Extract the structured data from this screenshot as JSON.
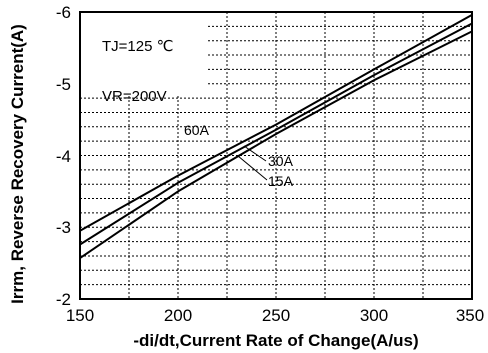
{
  "chart_data": {
    "type": "line",
    "xlabel": "-di/dt,Current Rate of Change(A/us)",
    "ylabel": "Irrm, Reverse Recovery Current(A)",
    "xlim": [
      150,
      350
    ],
    "ylim": [
      -2,
      -6
    ],
    "x_ticks": [
      "150",
      "200",
      "250",
      "300",
      "350"
    ],
    "y_ticks": [
      "-2",
      "-3",
      "-4",
      "-5",
      "-6"
    ],
    "x_tick_values": [
      150,
      200,
      250,
      300,
      350
    ],
    "y_tick_values": [
      -2,
      -3,
      -4,
      -5,
      -6
    ],
    "grid": true,
    "grid_style": "dotted",
    "conditions": [
      "TJ=125 ℃",
      "VR=200V"
    ],
    "series": [
      {
        "name": "60A",
        "x": [
          150,
          200,
          250,
          300,
          350
        ],
        "y": [
          -2.95,
          -3.72,
          -4.43,
          -5.2,
          -5.96
        ]
      },
      {
        "name": "30A",
        "x": [
          150,
          200,
          250,
          300,
          350
        ],
        "y": [
          -2.76,
          -3.62,
          -4.36,
          -5.12,
          -5.84
        ]
      },
      {
        "name": "15A",
        "x": [
          150,
          200,
          250,
          300,
          350
        ],
        "y": [
          -2.57,
          -3.5,
          -4.3,
          -5.05,
          -5.73
        ]
      }
    ],
    "annotations": [
      "60A",
      "30A",
      "15A"
    ]
  }
}
